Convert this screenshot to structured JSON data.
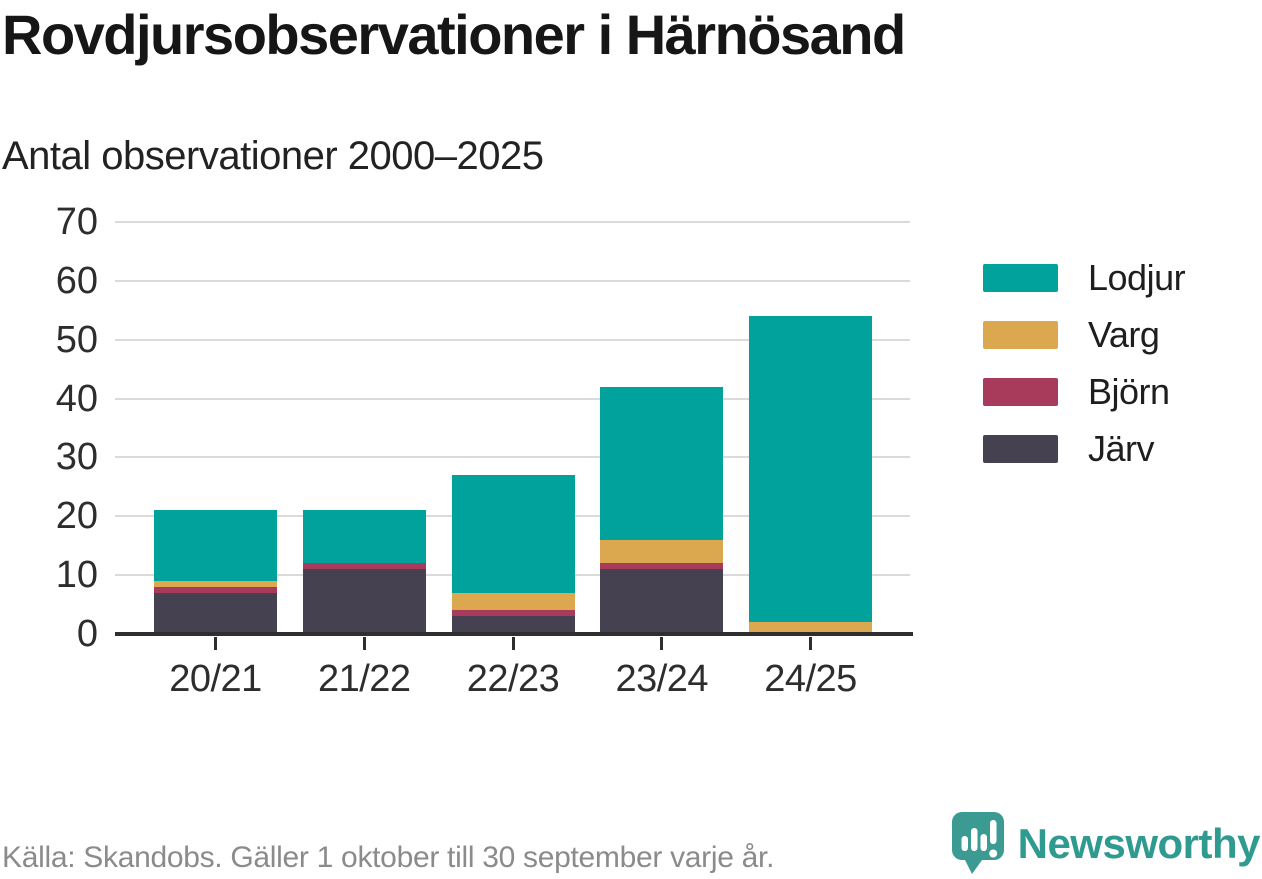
{
  "header": {
    "title": "Rovdjursobservationer i Härnösand",
    "subtitle": "Antal observationer 2000–2025"
  },
  "chart_data": {
    "type": "bar",
    "stacked": true,
    "title": "Rovdjursobservationer i Härnösand",
    "subtitle": "Antal observationer 2000–2025",
    "categories": [
      "20/21",
      "21/22",
      "22/23",
      "23/24",
      "24/25"
    ],
    "series": [
      {
        "name": "Järv",
        "color": "#464151",
        "values": [
          7,
          11,
          3,
          11,
          0
        ]
      },
      {
        "name": "Björn",
        "color": "#a83b5c",
        "values": [
          1,
          1,
          1,
          1,
          0
        ]
      },
      {
        "name": "Varg",
        "color": "#dba84f",
        "values": [
          1,
          0,
          3,
          4,
          2
        ]
      },
      {
        "name": "Lodjur",
        "color": "#00a29b",
        "values": [
          12,
          9,
          20,
          26,
          52
        ]
      }
    ],
    "totals": [
      21,
      21,
      27,
      42,
      54
    ],
    "xlabel": "",
    "ylabel": "",
    "ylim": [
      0,
      70
    ],
    "yticks": [
      0,
      10,
      20,
      30,
      40,
      50,
      60,
      70
    ],
    "grid": "horizontal",
    "legend_position": "right",
    "legend": [
      {
        "label": "Lodjur",
        "color": "#00a29b"
      },
      {
        "label": "Varg",
        "color": "#dba84f"
      },
      {
        "label": "Björn",
        "color": "#a83b5c"
      },
      {
        "label": "Järv",
        "color": "#464151"
      }
    ]
  },
  "footer": {
    "source": "Källa: Skandobs. Gäller 1 oktober till 30 september varje år.",
    "brand": "Newsworthy"
  },
  "colors": {
    "accent_teal": "#00a29b",
    "gold": "#dba84f",
    "maroon": "#a83b5c",
    "dark_slate": "#464151",
    "brand_teal": "#2f9a90",
    "grid": "#dadada",
    "axis": "#2e2e2e",
    "muted_text": "#8b8b8b"
  }
}
